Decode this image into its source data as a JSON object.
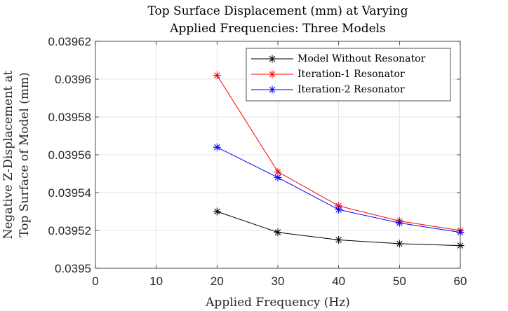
{
  "chart_data": {
    "type": "line",
    "title": [
      "Top Surface Displacement (mm) at Varying",
      "Applied Frequencies: Three Models"
    ],
    "xlabel": "Applied Frequency (Hz)",
    "ylabel": [
      "Negative Z-Displacement at",
      "Top Surface of Model (mm)"
    ],
    "xlim": [
      0,
      60
    ],
    "ylim": [
      0.0395,
      0.03962
    ],
    "xticks": [
      0,
      10,
      20,
      30,
      40,
      50,
      60
    ],
    "xtick_labels": [
      "0",
      "10",
      "20",
      "30",
      "40",
      "50",
      "60"
    ],
    "yticks": [
      0.0395,
      0.03952,
      0.03954,
      0.03956,
      0.03958,
      0.0396,
      0.03962
    ],
    "ytick_labels": [
      "0.0395",
      "0.03952",
      "0.03954",
      "0.03956",
      "0.03958",
      "0.0396",
      "0.03962"
    ],
    "grid": true,
    "legend_position": "top-right",
    "x": [
      20,
      30,
      40,
      50,
      60
    ],
    "series": [
      {
        "name": "Model Without Resonator",
        "color": "#000000",
        "marker": "asterisk",
        "values": [
          0.03953,
          0.039519,
          0.039515,
          0.039513,
          0.039512
        ]
      },
      {
        "name": "Iteration-1 Resonator",
        "color": "#ff0000",
        "marker": "asterisk",
        "values": [
          0.039602,
          0.039551,
          0.039533,
          0.039525,
          0.03952
        ]
      },
      {
        "name": "Iteration-2 Resonator",
        "color": "#0000ff",
        "marker": "asterisk",
        "values": [
          0.039564,
          0.039548,
          0.039531,
          0.039524,
          0.039519
        ]
      }
    ]
  }
}
